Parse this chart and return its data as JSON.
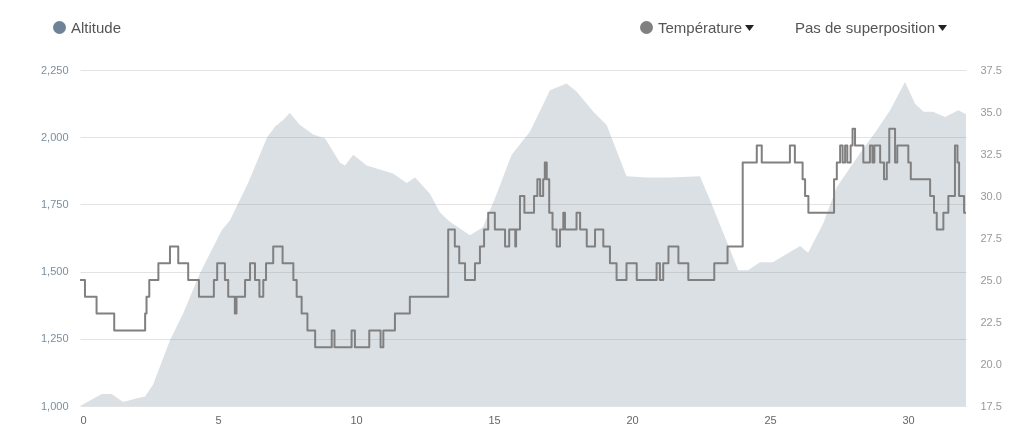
{
  "chart_data": {
    "type": "area",
    "xlim": [
      0,
      32.1
    ],
    "xticks": [
      0,
      5,
      10,
      15,
      20,
      25,
      30
    ],
    "ylim": [
      1000,
      2250
    ],
    "yticks": [
      {
        "value": 1000,
        "label": "1,000"
      },
      {
        "value": 1250,
        "label": "1,250"
      },
      {
        "value": 1500,
        "label": "1,500"
      },
      {
        "value": 1750,
        "label": "1,750"
      },
      {
        "value": 2000,
        "label": "2,000"
      },
      {
        "value": 2250,
        "label": "2,250"
      }
    ],
    "y2lim": [
      17.5,
      37.5
    ],
    "y2ticks": [
      17.5,
      {
        "value": 20,
        "label": "20.0"
      },
      22.5,
      {
        "value": 25,
        "label": "25.0"
      },
      27.5,
      {
        "value": 30,
        "label": "30.0"
      },
      32.5,
      {
        "value": 35,
        "label": "35.0"
      },
      37.5
    ],
    "grid": "y",
    "legend": "top",
    "annotations": [
      "Pas de superposition"
    ],
    "series": [
      {
        "name": "Altitude",
        "color": "#6e8496",
        "x": [
          0,
          0.18,
          0.79,
          1.15,
          1.56,
          2.1,
          2.36,
          2.65,
          3.26,
          3.74,
          4.35,
          5.14,
          5.43,
          6.09,
          6.78,
          7.07,
          7.37,
          7.6,
          7.97,
          8.45,
          8.88,
          9.06,
          9.42,
          9.6,
          9.9,
          10.39,
          11.34,
          11.84,
          12.14,
          12.68,
          13.04,
          13.4,
          14.13,
          14.6,
          15.1,
          15.64,
          16.3,
          17.03,
          17.63,
          17.99,
          18.6,
          19.08,
          19.8,
          20.53,
          21.38,
          22.46,
          22.83,
          23.85,
          24.2,
          24.64,
          25.1,
          26.09,
          26.38,
          26.93,
          27.42,
          28.26,
          28.86,
          29.35,
          29.89,
          30.25,
          30.56,
          30.9,
          31.34,
          31.82,
          32.1
        ],
        "values": [
          1000,
          1010,
          1045,
          1045,
          1015,
          1030,
          1035,
          1080,
          1245,
          1345,
          1495,
          1655,
          1690,
          1830,
          2000,
          2040,
          2065,
          2090,
          2045,
          2010,
          1995,
          1965,
          1905,
          1895,
          1935,
          1895,
          1865,
          1830,
          1850,
          1790,
          1720,
          1685,
          1635,
          1665,
          1790,
          1935,
          2020,
          2175,
          2200,
          2170,
          2095,
          2045,
          1855,
          1850,
          1850,
          1855,
          1765,
          1505,
          1505,
          1535,
          1535,
          1595,
          1570,
          1680,
          1815,
          1940,
          2025,
          2100,
          2205,
          2125,
          2095,
          2095,
          2075,
          2100,
          2085
        ]
      },
      {
        "name": "Température",
        "type": "step",
        "axis": "y2",
        "color": "#808080",
        "x": [
          0,
          0.18,
          0.6,
          1.24,
          2.36,
          2.41,
          2.51,
          2.84,
          3.26,
          3.56,
          3.92,
          4.31,
          4.85,
          4.97,
          5.25,
          5.37,
          5.61,
          5.67,
          5.98,
          6.16,
          6.34,
          6.5,
          6.64,
          6.74,
          7.0,
          7.34,
          7.73,
          7.85,
          8.03,
          8.24,
          8.52,
          9.12,
          9.22,
          9.84,
          9.96,
          10.48,
          10.89,
          10.99,
          11.41,
          11.95,
          13.34,
          13.58,
          13.74,
          13.95,
          14.31,
          14.49,
          14.64,
          14.79,
          15.03,
          15.4,
          15.55,
          15.77,
          15.8,
          15.94,
          16.1,
          16.45,
          16.57,
          16.67,
          16.78,
          16.84,
          16.91,
          17.0,
          17.12,
          17.27,
          17.39,
          17.51,
          17.57,
          17.99,
          18.12,
          18.36,
          18.66,
          18.96,
          19.2,
          19.44,
          19.8,
          20.17,
          20.89,
          21.01,
          21.13,
          21.32,
          21.68,
          22.04,
          22.98,
          23.46,
          24.01,
          24.52,
          24.7,
          25.72,
          25.9,
          26.18,
          26.27,
          26.39,
          27.32,
          27.42,
          27.54,
          27.63,
          27.72,
          27.8,
          27.92,
          27.99,
          28.08,
          28.38,
          28.62,
          28.71,
          28.78,
          28.99,
          29.13,
          29.23,
          29.32,
          29.53,
          29.61,
          30.01,
          30.1,
          30.8,
          30.94,
          31.04,
          31.28,
          31.46,
          31.7,
          31.79,
          31.85,
          32.03,
          32.1
        ],
        "values": [
          25,
          24,
          23,
          22,
          23,
          24,
          25,
          26,
          27,
          26,
          25,
          24,
          25,
          26,
          25,
          24,
          23,
          24,
          25,
          26,
          25,
          24,
          25,
          26,
          27,
          26,
          25,
          24,
          23,
          22,
          21,
          22,
          21,
          22,
          21,
          22,
          21,
          22,
          23,
          24,
          28,
          27,
          26,
          25,
          26,
          27,
          28,
          29,
          28,
          27,
          28,
          27,
          28,
          30,
          29,
          30,
          31,
          30,
          31,
          32,
          31,
          29,
          28,
          27,
          28,
          29,
          28,
          29,
          28,
          27,
          28,
          27,
          26,
          25,
          26,
          25,
          26,
          25,
          26,
          27,
          26,
          25,
          26,
          27,
          32,
          33,
          32,
          33,
          32,
          31,
          30,
          29,
          31,
          32,
          33,
          32,
          33,
          32,
          33,
          34,
          33,
          32,
          33,
          32,
          33,
          32,
          31,
          32,
          34,
          32,
          33,
          32,
          31,
          30,
          29,
          28,
          29,
          30,
          33,
          32,
          30,
          29,
          29
        ]
      }
    ]
  }
}
